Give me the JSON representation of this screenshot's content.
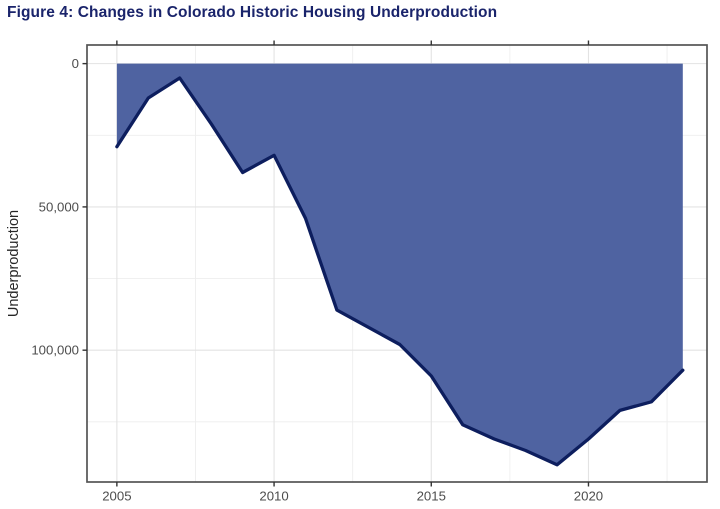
{
  "figure": {
    "title": "Figure 4: Changes in Colorado Historic Housing Underproduction",
    "title_color": "#1a246b"
  },
  "chart_data": {
    "type": "area",
    "title": "Figure 4: Changes in Colorado Historic Housing Underproduction",
    "xlabel": "",
    "ylabel": "Underproduction",
    "x": [
      2005,
      2006,
      2007,
      2008,
      2009,
      2010,
      2011,
      2012,
      2013,
      2014,
      2015,
      2016,
      2017,
      2018,
      2019,
      2020,
      2021,
      2022,
      2023
    ],
    "values": [
      29000,
      12000,
      5000,
      21000,
      38000,
      32000,
      54000,
      86000,
      92000,
      98000,
      109000,
      126000,
      131000,
      135000,
      140000,
      131000,
      121000,
      118000,
      107000
    ],
    "baseline": 0,
    "y_axis": {
      "inverted": true,
      "range": [
        -6500,
        146000
      ],
      "ticks": [
        0,
        50000,
        100000
      ],
      "tick_labels": [
        "0",
        "50,000",
        "100,000"
      ],
      "minor_ticks": [
        25000,
        75000,
        125000
      ]
    },
    "x_axis": {
      "range": [
        2004.05,
        2023.77
      ],
      "ticks": [
        2005,
        2010,
        2015,
        2020
      ],
      "tick_labels": [
        "2005",
        "2010",
        "2015",
        "2020"
      ],
      "minor_ticks": [
        2007.5,
        2012.5,
        2017.5,
        2022.5
      ]
    },
    "grid": true,
    "legend": "none",
    "colors": {
      "fill": "#4f63a1",
      "line": "#0d1e5e",
      "grid_major": "#e3e3e3",
      "grid_minor": "#eeeeee",
      "panel_border": "#545454",
      "tick_mark": "#333333",
      "tick_label": "#4d4d4d",
      "axis_title": "#262626",
      "panel_background": "#ffffff"
    }
  }
}
